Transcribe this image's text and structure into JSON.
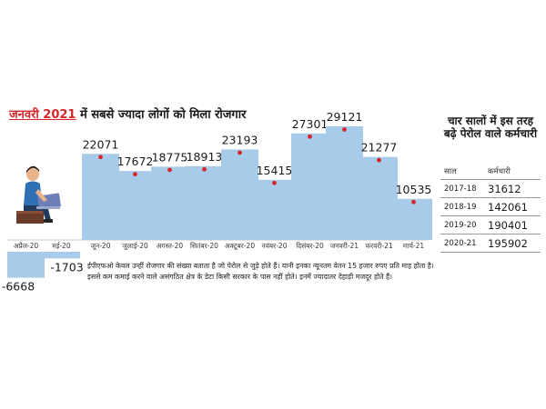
{
  "headline": {
    "highlight": "जनवरी 2021",
    "rest": "में सबसे ज्यादा लोगों को मिला रोजगार"
  },
  "colors": {
    "bar": "#a8cbe9",
    "marker": "#d6262a",
    "headline_accent": "#d6262a"
  },
  "chart_data": {
    "type": "bar",
    "title": "जनवरी 2021 में सबसे ज्यादा लोगों को मिला रोजगार",
    "categories": [
      "अप्रैल-20",
      "मई-20",
      "जून-20",
      "जुलाई-20",
      "अगस्त-20",
      "सितंबर-20",
      "अक्टूबर-20",
      "नवंबर-20",
      "दिसंबर-20",
      "जनवरी-21",
      "फरवरी-21",
      "मार्च-21"
    ],
    "values": [
      -6668,
      -1703,
      22071,
      17672,
      18775,
      18913,
      23193,
      15415,
      27301,
      29121,
      21277,
      10535
    ],
    "value_labels": [
      "-6668",
      "-1703",
      "22071",
      "17672",
      "18775",
      "18913",
      "23193",
      "15415",
      "27301",
      "29121",
      "21277",
      "10535"
    ],
    "xlabel": "",
    "ylabel": "",
    "ylim": [
      -7000,
      30000
    ],
    "grid": false
  },
  "side_table": {
    "title": "चार सालों में इस तरह  बढ़े पेरोल वाले कर्मचारी",
    "headers": [
      "साल",
      "कर्मचारी"
    ],
    "rows": [
      {
        "year": "2017-18",
        "value": "31612"
      },
      {
        "year": "2018-19",
        "value": "142061"
      },
      {
        "year": "2019-20",
        "value": "190401"
      },
      {
        "year": "2020-21",
        "value": "195902"
      }
    ]
  },
  "note": "ईपीएफओ केवल उन्हीं रोजगार की संख्या बताता है जो पेरोल से जुड़े होते हैं। यानी इनका न्यूनतम वेतन 15 हजार रुपए प्रति माह होता है। इससे कम कमाई करने वाले असंगठित क्षेत्र के डेटा किसी सरकार के पास नहीं होते। इनमें ज्यादातर देहाड़ी मजदूर होते हैं।",
  "illustration": {
    "icon": "person-with-laptop-icon"
  }
}
